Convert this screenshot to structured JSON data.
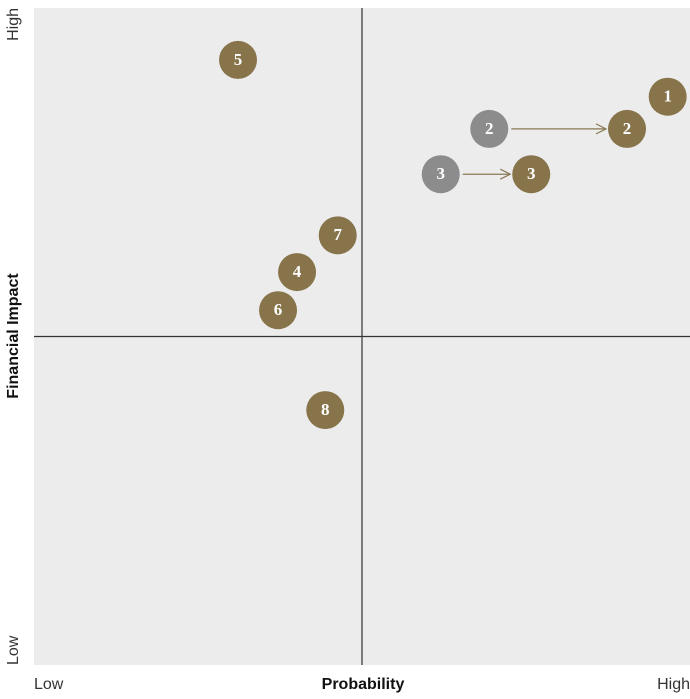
{
  "chart_data": {
    "type": "scatter",
    "x_label": "Probability",
    "y_label": "Financial Impact",
    "xlim": [
      0,
      10
    ],
    "ylim": [
      0,
      10
    ],
    "xticks": [
      {
        "value": 0,
        "label": "Low"
      },
      {
        "value": 10,
        "label": "High"
      }
    ],
    "yticks": [
      {
        "value": 0,
        "label": "Low"
      },
      {
        "value": 10,
        "label": "High"
      }
    ],
    "background": "#ececec",
    "arrow_color": "#8a7a55",
    "series": [
      {
        "color": "#8c8c8c",
        "x": [
          6.94,
          6.2
        ],
        "values": [
          8.16,
          7.47
        ],
        "labels": [
          "2",
          "3"
        ]
      },
      {
        "color": "#87744a",
        "x": [
          9.66,
          9.04,
          7.58,
          3.11,
          4.63,
          4.01,
          3.72,
          4.44
        ],
        "values": [
          8.65,
          8.16,
          7.47,
          9.21,
          6.54,
          5.98,
          5.4,
          3.88
        ],
        "labels": [
          "1",
          "2",
          "3",
          "5",
          "7",
          "4",
          "6",
          "8"
        ]
      }
    ]
  }
}
